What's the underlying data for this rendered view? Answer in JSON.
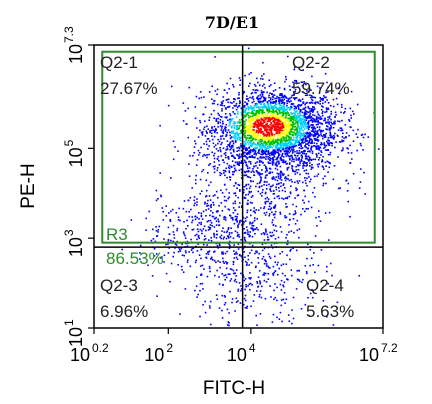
{
  "chart_data": {
    "type": "scatter",
    "title": "7D/E1",
    "xlabel": "FITC-H",
    "ylabel": "PE-H",
    "xscale": "log",
    "yscale": "log",
    "xlim_exp": [
      0.2,
      7.2
    ],
    "ylim_exp": [
      1,
      7.3
    ],
    "x_ticks": [
      {
        "base": "10",
        "exp": "0.2"
      },
      {
        "base": "10",
        "exp": "2"
      },
      {
        "base": "10",
        "exp": "4"
      },
      {
        "base": "10",
        "exp": "7.2"
      }
    ],
    "y_ticks": [
      {
        "base": "10",
        "exp": "1"
      },
      {
        "base": "10",
        "exp": "3"
      },
      {
        "base": "10",
        "exp": "5"
      },
      {
        "base": "10",
        "exp": "7.3"
      }
    ],
    "quadrant_divider_exp": {
      "x": 3.8,
      "y": 2.8
    },
    "gate": {
      "name": "R3",
      "percent": "86.53%",
      "x_exp": [
        0.4,
        7.0
      ],
      "y_exp": [
        2.9,
        7.15
      ],
      "color": "#2e8b2e"
    },
    "quadrants": [
      {
        "name": "Q2-1",
        "percent": "27.67%"
      },
      {
        "name": "Q2-2",
        "percent": "59.74%"
      },
      {
        "name": "Q2-3",
        "percent": "6.96%"
      },
      {
        "name": "Q2-4",
        "percent": "5.63%"
      }
    ],
    "density_colormap": [
      "#0000ff",
      "#00cfff",
      "#00c000",
      "#ffff00",
      "#ff0000"
    ]
  }
}
